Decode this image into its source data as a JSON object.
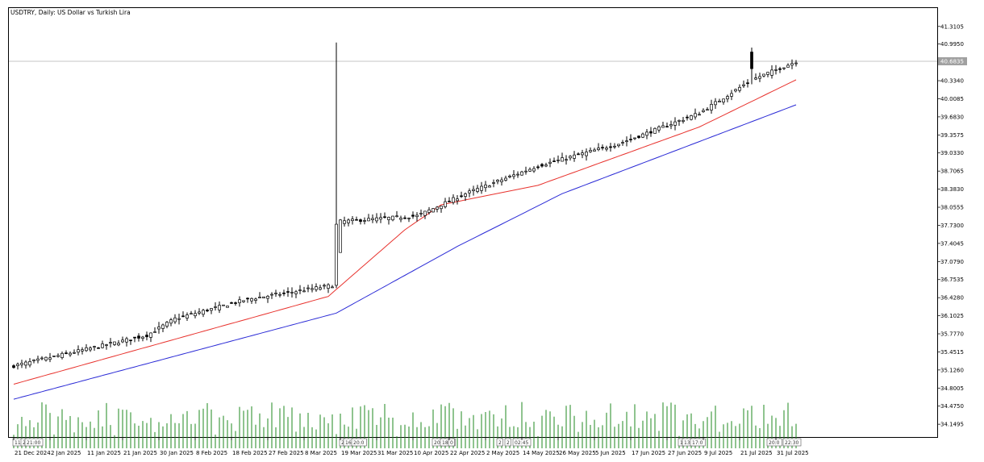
{
  "chart_title": "USDTRY, Daily:  US Dollar vs Turkish Lira",
  "current_price_label": "40.6835",
  "colors": {
    "bull_body": "#ffffff",
    "bear_body": "#000000",
    "candle_outline": "#000000",
    "ma_fast": "#e8322d",
    "ma_slow": "#2a2ad6",
    "volume": "#1f8a1f",
    "price_line": "#b0b0b0",
    "background": "#ffffff"
  },
  "chart_data": {
    "type": "candlestick",
    "ylim": [
      34.05,
      41.38
    ],
    "y_ticks": [
      "41.3105",
      "40.9950",
      "40.6835",
      "40.3340",
      "40.0085",
      "39.6830",
      "39.3575",
      "39.0330",
      "38.7065",
      "38.3830",
      "38.0555",
      "37.7300",
      "37.4045",
      "37.0790",
      "36.7535",
      "36.4280",
      "36.1025",
      "35.7770",
      "35.4515",
      "35.1260",
      "34.8005",
      "34.4750",
      "34.1495"
    ],
    "x_ticks": [
      "21 Dec 2024",
      "2 Jan 2025",
      "11 Jan 2025",
      "21 Jan 2025",
      "30 Jan 2025",
      "8 Feb 2025",
      "18 Feb 2025",
      "27 Feb 2025",
      "8 Mar 2025",
      "19 Mar 2025",
      "31 Mar 2025",
      "10 Apr 2025",
      "22 Apr 2025",
      "2 May 2025",
      "14 May 2025",
      "26 May 2025",
      "5 Jun 2025",
      "17 Jun 2025",
      "27 Jun 2025",
      "9 Jul 2025",
      "21 Jul 2025",
      "31 Jul 2025"
    ],
    "key_levels": [
      {
        "index": 0,
        "close": 35.2
      },
      {
        "index": 33,
        "close": 35.75
      },
      {
        "index": 40,
        "close": 36.05
      },
      {
        "index": 58,
        "close": 36.4
      },
      {
        "index": 79,
        "close": 36.65
      },
      {
        "index": 81,
        "close": 37.8
      },
      {
        "index": 100,
        "close": 37.9
      },
      {
        "index": 112,
        "close": 38.3
      },
      {
        "index": 130,
        "close": 38.8
      },
      {
        "index": 150,
        "close": 39.2
      },
      {
        "index": 170,
        "close": 39.75
      },
      {
        "index": 183,
        "close": 40.35
      },
      {
        "index": 194,
        "close": 40.68
      }
    ],
    "spikes": [
      {
        "index": 80,
        "high": 41.02
      },
      {
        "index": 183,
        "high": 40.93
      }
    ],
    "ma_fast_levels": [
      {
        "index": 0,
        "value": 34.87
      },
      {
        "index": 78,
        "value": 36.45
      },
      {
        "index": 97,
        "value": 37.65
      },
      {
        "index": 106,
        "value": 38.1
      },
      {
        "index": 130,
        "value": 38.45
      },
      {
        "index": 170,
        "value": 39.5
      },
      {
        "index": 194,
        "value": 40.35
      }
    ],
    "ma_slow_levels": [
      {
        "index": 0,
        "value": 34.6
      },
      {
        "index": 80,
        "value": 36.15
      },
      {
        "index": 110,
        "value": 37.35
      },
      {
        "index": 136,
        "value": 38.3
      },
      {
        "index": 194,
        "value": 39.9
      }
    ],
    "volume_range": [
      0.45,
      1.0
    ],
    "session_markers": [
      {
        "index": 0,
        "text": "11"
      },
      {
        "index": 2,
        "text": "2"
      },
      {
        "index": 3,
        "text": "21:00"
      },
      {
        "index": 81,
        "text": "2"
      },
      {
        "index": 82,
        "text": "16:1"
      },
      {
        "index": 84,
        "text": "20:0"
      },
      {
        "index": 104,
        "text": "20:2"
      },
      {
        "index": 106,
        "text": "18:3"
      },
      {
        "index": 108,
        "text": "0"
      },
      {
        "index": 120,
        "text": "2"
      },
      {
        "index": 122,
        "text": "2"
      },
      {
        "index": 124,
        "text": "02:45"
      },
      {
        "index": 165,
        "text": "1"
      },
      {
        "index": 166,
        "text": "13:1"
      },
      {
        "index": 168,
        "text": "17:0"
      },
      {
        "index": 187,
        "text": "20:0"
      },
      {
        "index": 191,
        "text": "22:30"
      }
    ]
  }
}
